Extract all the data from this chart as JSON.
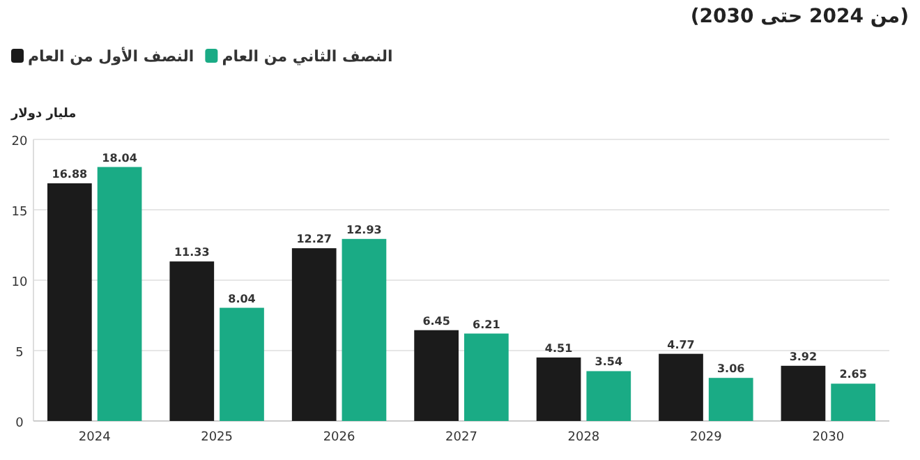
{
  "chart_data": {
    "type": "bar",
    "title": "(من 2024 حتى 2030)",
    "ylabel": "مليار دولار",
    "categories": [
      "2024",
      "2025",
      "2026",
      "2027",
      "2028",
      "2029",
      "2030"
    ],
    "series": [
      {
        "name": "النصف الأول من العام",
        "color": "#1b1b1b",
        "values": [
          16.88,
          11.33,
          12.27,
          6.45,
          4.51,
          4.77,
          3.92
        ]
      },
      {
        "name": "النصف الثاني من العام",
        "color": "#1aab85",
        "values": [
          18.04,
          8.04,
          12.93,
          6.21,
          3.54,
          3.06,
          2.65
        ]
      }
    ],
    "ylim": [
      0,
      20
    ],
    "yticks": [
      0,
      5,
      10,
      15,
      20
    ],
    "grid": "y",
    "legend": "top left",
    "data_labels": true
  }
}
